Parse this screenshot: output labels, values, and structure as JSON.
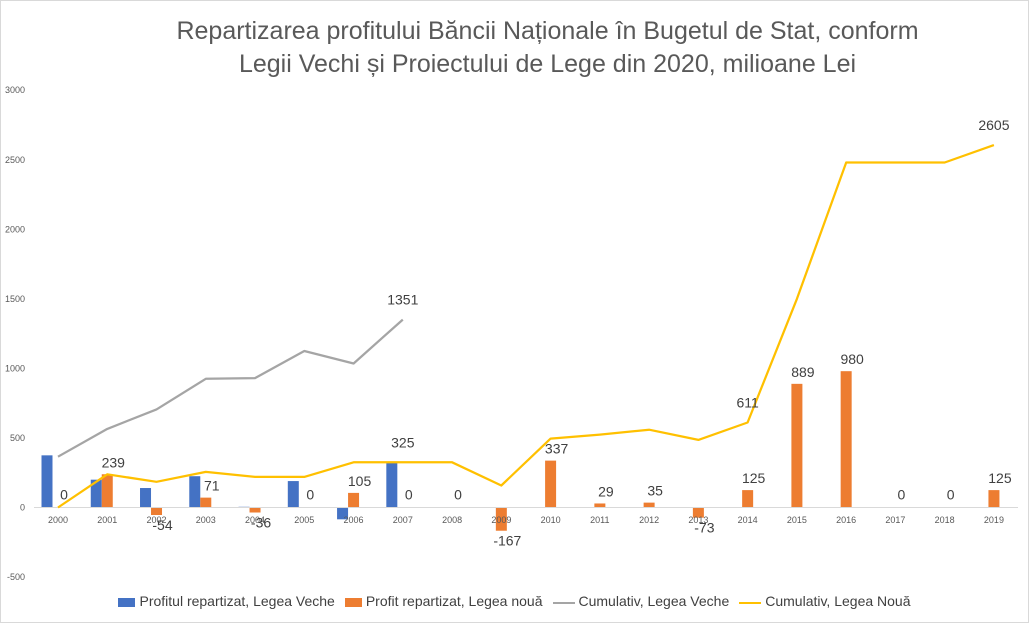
{
  "chart_data": {
    "type": "bar",
    "title_lines": [
      "Repartizarea profitului Băncii Naționale în Bugetul de Stat, conform",
      "Legii Vechi și Proiectului de Lege din 2020, milioane Lei"
    ],
    "categories": [
      "2000",
      "2001",
      "2002",
      "2003",
      "2004",
      "2005",
      "2006",
      "2007",
      "2008",
      "2009",
      "2010",
      "2011",
      "2012",
      "2013",
      "2014",
      "2015",
      "2016",
      "2017",
      "2018",
      "2019"
    ],
    "ylim": [
      -500,
      3000
    ],
    "yticks": [
      -500,
      0,
      500,
      1000,
      1500,
      2000,
      2500,
      3000
    ],
    "grid": false,
    "legend_position": "bottom",
    "series": [
      {
        "name": "Profitul repartizat, Legea Veche",
        "kind": "bar",
        "color": "#4472c4",
        "values": [
          375,
          200,
          140,
          225,
          5,
          190,
          -85,
          320,
          null,
          null,
          null,
          null,
          null,
          null,
          null,
          null,
          null,
          null,
          null,
          null
        ]
      },
      {
        "name": "Profit repartizat, Legea nouă",
        "kind": "bar",
        "color": "#ed7d31",
        "values": [
          0,
          239,
          -54,
          71,
          -36,
          0,
          105,
          0,
          0,
          -167,
          337,
          29,
          35,
          -73,
          125,
          889,
          980,
          0,
          0,
          125
        ]
      },
      {
        "name": "Cumulativ, Legea Veche",
        "kind": "line",
        "color": "#a5a5a5",
        "values": [
          365,
          565,
          705,
          925,
          930,
          1125,
          1035,
          1351,
          null,
          null,
          null,
          null,
          null,
          null,
          null,
          null,
          null,
          null,
          null,
          null
        ]
      },
      {
        "name": "Cumulativ, Legea Nouă",
        "kind": "line",
        "color": "#ffc000",
        "values": [
          0,
          239,
          185,
          256,
          220,
          220,
          325,
          325,
          325,
          158,
          495,
          524,
          559,
          486,
          611,
          1500,
          2480,
          2480,
          2480,
          2605
        ]
      }
    ],
    "bar_labels": [
      {
        "category": "2000",
        "series": 1,
        "text": "0"
      },
      {
        "category": "2001",
        "series": 1,
        "text": "239"
      },
      {
        "category": "2002",
        "series": 1,
        "text": "-54"
      },
      {
        "category": "2003",
        "series": 1,
        "text": "71"
      },
      {
        "category": "2004",
        "series": 1,
        "text": "-36"
      },
      {
        "category": "2005",
        "series": 1,
        "text": "0"
      },
      {
        "category": "2006",
        "series": 1,
        "text": "105"
      },
      {
        "category": "2007",
        "series": 1,
        "text": "0"
      },
      {
        "category": "2008",
        "series": 1,
        "text": "0"
      },
      {
        "category": "2009",
        "series": 1,
        "text": "-167"
      },
      {
        "category": "2010",
        "series": 1,
        "text": "337"
      },
      {
        "category": "2011",
        "series": 1,
        "text": "29"
      },
      {
        "category": "2012",
        "series": 1,
        "text": "35"
      },
      {
        "category": "2013",
        "series": 1,
        "text": "-73"
      },
      {
        "category": "2014",
        "series": 1,
        "text": "125"
      },
      {
        "category": "2015",
        "series": 1,
        "text": "889"
      },
      {
        "category": "2016",
        "series": 1,
        "text": "980"
      },
      {
        "category": "2017",
        "series": 1,
        "text": "0"
      },
      {
        "category": "2018",
        "series": 1,
        "text": "0"
      },
      {
        "category": "2019",
        "series": 1,
        "text": "125"
      }
    ],
    "line_labels": [
      {
        "category": "2007",
        "series": 2,
        "text": "1351"
      },
      {
        "category": "2007",
        "series": 3,
        "text": "325"
      },
      {
        "category": "2014",
        "series": 3,
        "text": "611"
      },
      {
        "category": "2019",
        "series": 3,
        "text": "2605"
      }
    ]
  }
}
